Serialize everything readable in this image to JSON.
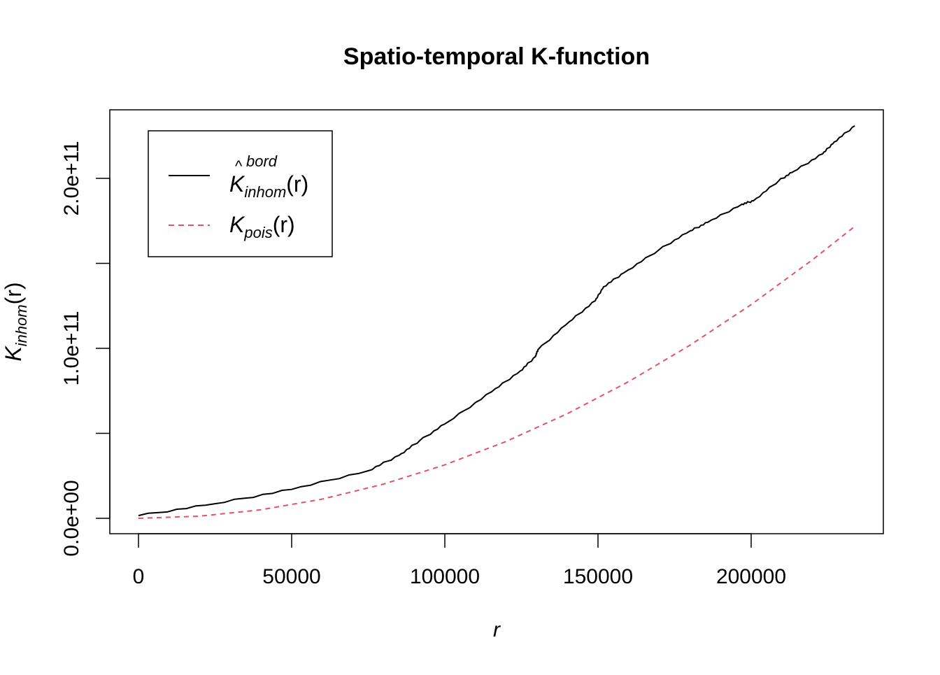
{
  "chart_data": {
    "type": "line",
    "title": "Spatio-temporal K-function",
    "xlabel": "r",
    "ylabel": {
      "base": "K",
      "sub": "inhom",
      "arg": "(r)"
    },
    "xlim": [
      0,
      233790
    ],
    "ylim": [
      0,
      231000000000.0
    ],
    "xticks": [
      0,
      50000,
      100000,
      150000,
      200000
    ],
    "xtick_labels": [
      "0",
      "50000",
      "100000",
      "150000",
      "200000"
    ],
    "yticks": [
      0,
      50000000000.0,
      100000000000.0,
      150000000000.0,
      200000000000.0
    ],
    "ytick_labels": [
      "0.0e+00",
      "",
      "1.0e+11",
      "",
      "2.0e+11"
    ],
    "grid": false,
    "legend_position": "top-left",
    "series": [
      {
        "name": "K_inhom^bord(r)",
        "legend": {
          "base": "K",
          "sup": "bord",
          "sub": "inhom",
          "arg": "(r)",
          "hat": "^"
        },
        "color": "#000000",
        "dash": "solid",
        "x": [
          0,
          25000,
          50000,
          75000,
          85000,
          91800,
          101100,
          115300,
          124700,
          129500,
          130400,
          140600,
          149100,
          151800,
          158400,
          169900,
          180100,
          185800,
          197000,
          200700,
          209100,
          213900,
          223300,
          227100,
          233790
        ],
        "y": [
          1600000000.0,
          8600000000.0,
          17000000000.0,
          28000000000.0,
          37000000000.0,
          45700000000.0,
          56800000000.0,
          74500000000.0,
          86800000000.0,
          95000000000.0,
          99200000000.0,
          115600000000.0,
          128000000000.0,
          136200000000.0,
          144400000000.0,
          158000000000.0,
          169100000000.0,
          174100000000.0,
          184800000000.0,
          186800000000.0,
          198800000000.0,
          204100000000.0,
          214400000000.0,
          221400000000.0,
          230900000000.0
        ]
      },
      {
        "name": "K_pois(r)",
        "legend": {
          "base": "K",
          "sub": "pois",
          "arg": "(r)"
        },
        "color": "#DF536B",
        "dash": "dashed",
        "x": [
          0,
          20000,
          40000,
          60000,
          80000,
          100000,
          120000,
          140000,
          160000,
          180000,
          200000,
          220000,
          233790
        ],
        "y": [
          0,
          1257000000.0,
          5027000000.0,
          11310000000.0,
          20110000000.0,
          31420000000.0,
          45240000000.0,
          61580000000.0,
          80420000000.0,
          101800000000.0,
          125700000000.0,
          152100000000.0,
          171700000000.0
        ]
      }
    ]
  }
}
